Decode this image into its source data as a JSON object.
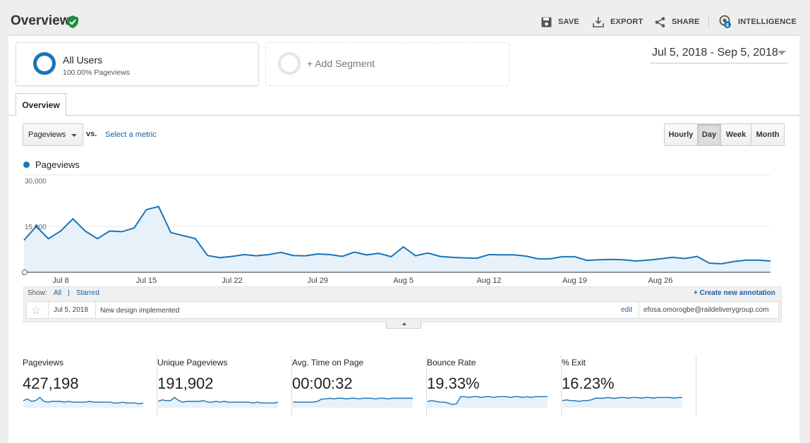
{
  "header": {
    "title": "Overview",
    "actions": {
      "save": "SAVE",
      "export": "EXPORT",
      "share": "SHARE",
      "intelligence": "INTELLIGENCE",
      "intelligence_badge": "6"
    }
  },
  "segments": {
    "primary": {
      "name": "All Users",
      "subtitle": "100.00% Pageviews"
    },
    "add_label": "+ Add Segment"
  },
  "date_range": "Jul 5, 2018 - Sep 5, 2018",
  "tabs": [
    "Overview"
  ],
  "controls": {
    "metric": "Pageviews",
    "vs": "vs.",
    "select_metric": "Select a metric",
    "granularity": [
      {
        "label": "Hourly",
        "active": false
      },
      {
        "label": "Day",
        "active": true
      },
      {
        "label": "Week",
        "active": false
      },
      {
        "label": "Month",
        "active": false
      }
    ]
  },
  "colors": {
    "series": "#1a74b6",
    "area": "#e6f1fa",
    "link": "#1a5fa6"
  },
  "chart_data": {
    "type": "area",
    "series": [
      {
        "name": "Pageviews",
        "values": [
          10500,
          15000,
          11000,
          13500,
          17500,
          13500,
          11000,
          13500,
          13300,
          14500,
          20500,
          21500,
          13000,
          12000,
          11000,
          5500,
          4800,
          5200,
          5800,
          5400,
          5800,
          6500,
          5500,
          5400,
          6000,
          5800,
          5200,
          6600,
          5700,
          6200,
          5100,
          8300,
          5400,
          6300,
          5200,
          4900,
          4700,
          4600,
          5800,
          5700,
          5700,
          5300,
          4400,
          4400,
          5100,
          5100,
          3900,
          4100,
          4200,
          4100,
          3700,
          4000,
          4400,
          4900,
          4500,
          5200,
          3000,
          2800,
          3500,
          4000,
          4000,
          3700
        ]
      }
    ],
    "x_tick_labels": [
      "Jul 8",
      "Jul 15",
      "Jul 22",
      "Jul 29",
      "Aug 5",
      "Aug 12",
      "Aug 19",
      "Aug 26"
    ],
    "y_tick_labels": [
      "30,000",
      "15,000"
    ],
    "ylim": [
      0,
      30000
    ],
    "grid": true,
    "legend": "top-left"
  },
  "annotations": {
    "show_label": "Show:",
    "filter_all": "All",
    "filter_sep": "|",
    "filter_starred": "Starred",
    "create_label": "+ Create new annotation",
    "items": [
      {
        "date": "Jul 5, 2018",
        "text": "New design implemented",
        "edit": "edit",
        "user": "efosa.omorogbe@raildeliverygroup.com"
      }
    ]
  },
  "stats": [
    {
      "label": "Pageviews",
      "value": "427,198",
      "spark": [
        9,
        11,
        8,
        9,
        13,
        8,
        7,
        8,
        8,
        8,
        7,
        8,
        7,
        7,
        7,
        7,
        8,
        7,
        7,
        7,
        7,
        7,
        6,
        6,
        7,
        6,
        6,
        6,
        5,
        6
      ]
    },
    {
      "label": "Unique Pageviews",
      "value": "191,902",
      "spark": [
        8,
        10,
        9,
        9,
        13,
        9,
        7,
        8,
        8,
        8,
        8,
        9,
        7,
        7,
        8,
        7,
        8,
        7,
        7,
        7,
        7,
        7,
        7,
        6,
        7,
        6,
        6,
        6,
        6,
        7
      ]
    },
    {
      "label": "Avg. Time on Page",
      "value": "00:00:32",
      "spark": [
        7,
        7,
        7,
        7,
        7,
        7,
        8,
        11,
        11,
        12,
        11,
        12,
        12,
        11,
        12,
        12,
        11,
        12,
        12,
        12,
        11,
        12,
        12,
        11,
        12,
        12,
        12,
        12,
        12,
        12
      ]
    },
    {
      "label": "Bounce Rate",
      "value": "19.33%",
      "spark": [
        8,
        9,
        8,
        7,
        7,
        6,
        4,
        5,
        14,
        14,
        13,
        14,
        14,
        13,
        14,
        14,
        13,
        14,
        14,
        14,
        13,
        14,
        14,
        13,
        14,
        13,
        14,
        14,
        14,
        14
      ]
    },
    {
      "label": "% Exit",
      "value": "16.23%",
      "spark": [
        9,
        10,
        9,
        9,
        8,
        9,
        9,
        10,
        12,
        12,
        12,
        13,
        12,
        12,
        13,
        13,
        12,
        13,
        13,
        12,
        13,
        13,
        12,
        13,
        13,
        13,
        13,
        12,
        13,
        13
      ]
    }
  ]
}
